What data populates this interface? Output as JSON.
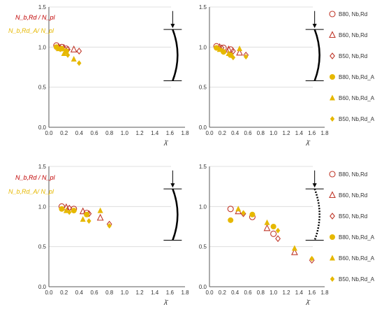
{
  "colors": {
    "red": "#c0392b",
    "gold": "#e6b800",
    "grid": "#d9d9d9",
    "axis": "#595959",
    "ylabel_red": "#c00000",
    "ylabel_gold": "#e6b800",
    "member": "#000000"
  },
  "y_labels": {
    "top_red": "N_b,Rd / N_pl",
    "top_gold": "N_b,Rd_A/ N_pl"
  },
  "x_label": "λ̄",
  "legend": [
    {
      "label": "B80, Nb,Rd",
      "marker": "circle-open",
      "color": "red"
    },
    {
      "label": "B60, Nb,Rd",
      "marker": "triangle-open",
      "color": "red"
    },
    {
      "label": "B50, Nb,Rd",
      "marker": "diamond-open",
      "color": "red"
    },
    {
      "label": "B80, Nb,Rd_A",
      "marker": "circle",
      "color": "gold"
    },
    {
      "label": "B60, Nb,Rd_A",
      "marker": "triangle",
      "color": "gold"
    },
    {
      "label": "B50, Nb,Rd_A",
      "marker": "diamond",
      "color": "gold"
    }
  ],
  "chart_data": [
    {
      "type": "scatter",
      "panel": "top-left",
      "xlim": [
        0,
        1.8
      ],
      "ylim": [
        0,
        1.5
      ],
      "xticks": [
        "0.0",
        "0.2",
        "0.4",
        "0.6",
        "0.8",
        "1.0",
        "1.2",
        "1.4",
        "1.6",
        "1.8"
      ],
      "yticks": [
        "0.0",
        "0.5",
        "1.0",
        "1.5"
      ],
      "ylabel_red": "N_b,Rd / N_pl",
      "ylabel_gold": "N_b,Rd_A/ N_pl",
      "xlabel": "λ̄",
      "member_icon": "fixed-pinned column",
      "series": [
        {
          "name": "B80, Nb,Rd",
          "points": [
            [
              0.1,
              1.02
            ],
            [
              0.17,
              1.0
            ],
            [
              0.23,
              0.98
            ]
          ]
        },
        {
          "name": "B60, Nb,Rd",
          "points": [
            [
              0.13,
              1.0
            ],
            [
              0.2,
              0.99
            ],
            [
              0.33,
              0.97
            ]
          ]
        },
        {
          "name": "B50, Nb,Rd",
          "points": [
            [
              0.15,
              0.99
            ],
            [
              0.25,
              0.97
            ],
            [
              0.4,
              0.95
            ]
          ]
        },
        {
          "name": "B80, Nb,Rd_A",
          "points": [
            [
              0.1,
              1.0
            ],
            [
              0.17,
              0.98
            ],
            [
              0.23,
              0.95
            ]
          ]
        },
        {
          "name": "B60, Nb,Rd_A",
          "points": [
            [
              0.13,
              0.98
            ],
            [
              0.2,
              0.92
            ],
            [
              0.33,
              0.85
            ]
          ]
        },
        {
          "name": "B50, Nb,Rd_A",
          "points": [
            [
              0.15,
              0.97
            ],
            [
              0.25,
              0.9
            ],
            [
              0.4,
              0.8
            ]
          ]
        }
      ]
    },
    {
      "type": "scatter",
      "panel": "top-right",
      "xlim": [
        0,
        1.8
      ],
      "ylim": [
        0,
        1.5
      ],
      "xticks": [
        "0.0",
        "0.2",
        "0.4",
        "0.6",
        "0.8",
        "1.0",
        "1.2",
        "1.4",
        "1.6",
        "1.8"
      ],
      "yticks": [
        "0.0",
        "0.5",
        "1.0",
        "1.5"
      ],
      "xlabel": "λ̄",
      "member_icon": "pinned-fixed column",
      "series": [
        {
          "name": "B80, Nb,Rd",
          "points": [
            [
              0.11,
              1.01
            ],
            [
              0.22,
              0.99
            ],
            [
              0.33,
              0.97
            ]
          ]
        },
        {
          "name": "B60, Nb,Rd",
          "points": [
            [
              0.16,
              1.0
            ],
            [
              0.3,
              0.97
            ],
            [
              0.47,
              0.93
            ]
          ]
        },
        {
          "name": "B50, Nb,Rd",
          "points": [
            [
              0.19,
              0.99
            ],
            [
              0.37,
              0.95
            ],
            [
              0.57,
              0.9
            ]
          ]
        },
        {
          "name": "B80, Nb,Rd_A",
          "points": [
            [
              0.11,
              0.99
            ],
            [
              0.22,
              0.94
            ],
            [
              0.33,
              0.9
            ]
          ]
        },
        {
          "name": "B60, Nb,Rd_A",
          "points": [
            [
              0.16,
              0.97
            ],
            [
              0.3,
              0.92
            ],
            [
              0.47,
              0.98
            ]
          ]
        },
        {
          "name": "B50, Nb,Rd_A",
          "points": [
            [
              0.19,
              0.96
            ],
            [
              0.37,
              0.87
            ],
            [
              0.57,
              0.88
            ]
          ]
        }
      ]
    },
    {
      "type": "scatter",
      "panel": "bottom-left",
      "xlim": [
        0,
        1.8
      ],
      "ylim": [
        0,
        1.5
      ],
      "xticks": [
        "0.0",
        "0.2",
        "0.4",
        "0.6",
        "0.8",
        "1.0",
        "1.2",
        "1.4",
        "1.6",
        "1.8"
      ],
      "yticks": [
        "0.0",
        "0.5",
        "1.0",
        "1.5"
      ],
      "ylabel_red": "N_b,Rd / N_pl",
      "ylabel_gold": "N_b,Rd_A/ N_pl",
      "xlabel": "λ̄",
      "member_icon": "pinned-pinned column",
      "series": [
        {
          "name": "B80, Nb,Rd",
          "points": [
            [
              0.17,
              1.0
            ],
            [
              0.33,
              0.97
            ],
            [
              0.5,
              0.92
            ]
          ]
        },
        {
          "name": "B60, Nb,Rd",
          "points": [
            [
              0.23,
              0.99
            ],
            [
              0.45,
              0.94
            ],
            [
              0.68,
              0.86
            ]
          ]
        },
        {
          "name": "B50, Nb,Rd",
          "points": [
            [
              0.27,
              0.98
            ],
            [
              0.53,
              0.91
            ],
            [
              0.8,
              0.78
            ]
          ]
        },
        {
          "name": "B80, Nb,Rd_A",
          "points": [
            [
              0.17,
              0.97
            ],
            [
              0.33,
              0.95
            ],
            [
              0.5,
              0.9
            ]
          ]
        },
        {
          "name": "B60, Nb,Rd_A",
          "points": [
            [
              0.23,
              0.95
            ],
            [
              0.45,
              0.84
            ],
            [
              0.68,
              0.95
            ]
          ]
        },
        {
          "name": "B50, Nb,Rd_A",
          "points": [
            [
              0.27,
              0.93
            ],
            [
              0.53,
              0.82
            ],
            [
              0.8,
              0.76
            ]
          ]
        }
      ]
    },
    {
      "type": "scatter",
      "panel": "bottom-right",
      "xlim": [
        0,
        1.8
      ],
      "ylim": [
        0,
        1.5
      ],
      "xticks": [
        "0.0",
        "0.2",
        "0.4",
        "0.6",
        "0.8",
        "1.0",
        "1.2",
        "1.4",
        "1.6",
        "1.8"
      ],
      "yticks": [
        "0.0",
        "0.5",
        "1.0",
        "1.5"
      ],
      "xlabel": "λ̄",
      "member_icon": "cantilever column",
      "series": [
        {
          "name": "B80, Nb,Rd",
          "points": [
            [
              0.33,
              0.97
            ],
            [
              0.67,
              0.87
            ],
            [
              1.0,
              0.66
            ]
          ]
        },
        {
          "name": "B60, Nb,Rd",
          "points": [
            [
              0.45,
              0.94
            ],
            [
              0.9,
              0.73
            ],
            [
              1.33,
              0.43
            ]
          ]
        },
        {
          "name": "B50, Nb,Rd",
          "points": [
            [
              0.53,
              0.91
            ],
            [
              1.07,
              0.6
            ],
            [
              1.6,
              0.33
            ]
          ]
        },
        {
          "name": "B80, Nb,Rd_A",
          "points": [
            [
              0.33,
              0.83
            ],
            [
              0.67,
              0.9
            ],
            [
              1.0,
              0.75
            ]
          ]
        },
        {
          "name": "B60, Nb,Rd_A",
          "points": [
            [
              0.45,
              0.97
            ],
            [
              0.9,
              0.8
            ],
            [
              1.33,
              0.48
            ]
          ]
        },
        {
          "name": "B50, Nb,Rd_A",
          "points": [
            [
              0.53,
              0.92
            ],
            [
              1.07,
              0.7
            ],
            [
              1.6,
              0.35
            ]
          ]
        }
      ]
    }
  ]
}
